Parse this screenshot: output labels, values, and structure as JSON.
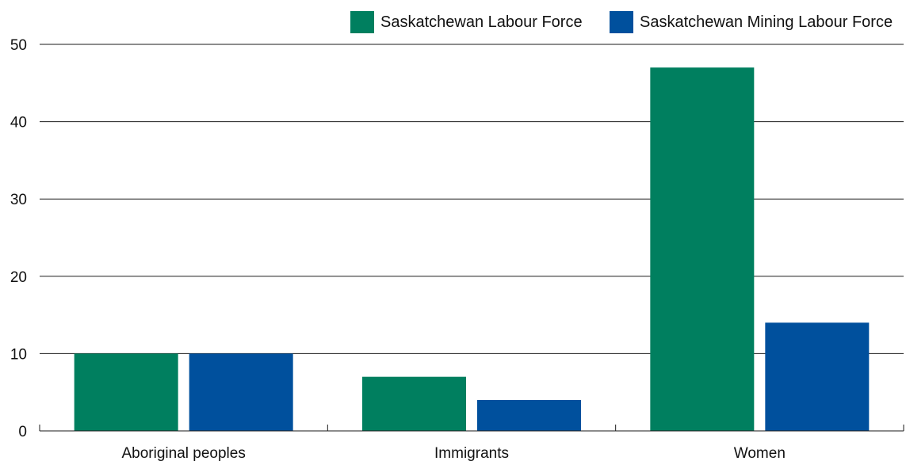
{
  "chart_data": {
    "type": "bar",
    "categories": [
      "Aboriginal peoples",
      "Immigrants",
      "Women"
    ],
    "series": [
      {
        "name": "Saskatchewan Labour Force",
        "color": "#007f5f",
        "values": [
          10,
          7,
          47
        ]
      },
      {
        "name": "Saskatchewan Mining Labour Force",
        "color": "#00509d",
        "values": [
          10,
          4,
          14
        ]
      }
    ],
    "yticks": [
      0,
      10,
      20,
      30,
      40,
      50
    ],
    "ylim": [
      0,
      50
    ],
    "grid": true,
    "legend_position": "top-right"
  }
}
